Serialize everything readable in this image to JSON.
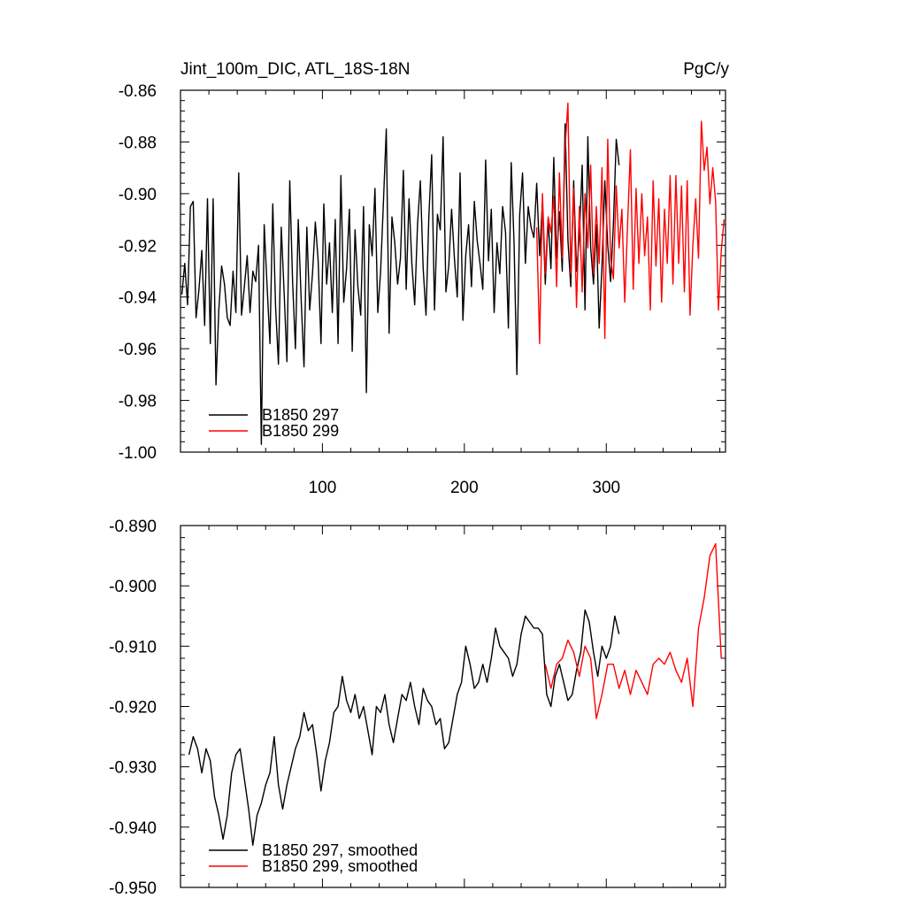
{
  "chart_data": [
    {
      "type": "line",
      "title": "Jint_100m_DIC, ATL_18S-18N",
      "units": "PgC/y",
      "xlim": [
        0,
        384
      ],
      "ylim": [
        -1.0,
        -0.86
      ],
      "x_ticks": [
        100,
        200,
        300
      ],
      "x_tick_labels": [
        "100",
        "200",
        "300"
      ],
      "y_ticks": [
        -0.86,
        -0.88,
        -0.9,
        -0.92,
        -0.94,
        -0.96,
        -0.98,
        -1.0
      ],
      "y_tick_labels": [
        "-0.86",
        "-0.88",
        "-0.90",
        "-0.92",
        "-0.94",
        "-0.96",
        "-0.98",
        "-1.00"
      ],
      "legend_position": "bottom-left",
      "series": [
        {
          "name": "B1850 297",
          "color": "#000000",
          "x": [
            1,
            3,
            5,
            7,
            9,
            11,
            13,
            15,
            17,
            19,
            21,
            23,
            25,
            27,
            29,
            31,
            33,
            35,
            37,
            39,
            41,
            43,
            45,
            47,
            49,
            51,
            53,
            55,
            57,
            59,
            61,
            63,
            65,
            67,
            69,
            71,
            73,
            75,
            77,
            79,
            81,
            83,
            85,
            87,
            89,
            91,
            93,
            95,
            97,
            99,
            101,
            103,
            105,
            107,
            109,
            111,
            113,
            115,
            117,
            119,
            121,
            123,
            125,
            127,
            129,
            131,
            133,
            135,
            137,
            139,
            141,
            143,
            145,
            147,
            149,
            151,
            153,
            155,
            157,
            159,
            161,
            163,
            165,
            167,
            169,
            171,
            173,
            175,
            177,
            179,
            181,
            183,
            185,
            187,
            189,
            191,
            193,
            195,
            197,
            199,
            201,
            203,
            205,
            207,
            209,
            211,
            213,
            215,
            217,
            219,
            221,
            223,
            225,
            227,
            229,
            231,
            233,
            235,
            237,
            239,
            241,
            243,
            245,
            247,
            249,
            251,
            253,
            255,
            257,
            259,
            261,
            263,
            265,
            267,
            269,
            271,
            273,
            275,
            277,
            279,
            281,
            283,
            285,
            287,
            289,
            291,
            293,
            295,
            297,
            299,
            301,
            303,
            305,
            307,
            309
          ],
          "values": [
            -0.939,
            -0.927,
            -0.943,
            -0.905,
            -0.903,
            -0.948,
            -0.937,
            -0.922,
            -0.951,
            -0.902,
            -0.958,
            -0.902,
            -0.974,
            -0.945,
            -0.928,
            -0.935,
            -0.948,
            -0.951,
            -0.93,
            -0.946,
            -0.892,
            -0.947,
            -0.936,
            -0.924,
            -0.946,
            -0.93,
            -0.934,
            -0.92,
            -0.997,
            -0.912,
            -0.936,
            -0.958,
            -0.904,
            -0.944,
            -0.966,
            -0.913,
            -0.938,
            -0.965,
            -0.895,
            -0.934,
            -0.96,
            -0.91,
            -0.941,
            -0.967,
            -0.913,
            -0.945,
            -0.931,
            -0.911,
            -0.926,
            -0.958,
            -0.904,
            -0.935,
            -0.919,
            -0.946,
            -0.91,
            -0.958,
            -0.893,
            -0.942,
            -0.929,
            -0.906,
            -0.961,
            -0.914,
            -0.936,
            -0.947,
            -0.905,
            -0.977,
            -0.912,
            -0.924,
            -0.898,
            -0.946,
            -0.93,
            -0.903,
            -0.875,
            -0.954,
            -0.909,
            -0.919,
            -0.935,
            -0.925,
            -0.891,
            -0.937,
            -0.902,
            -0.927,
            -0.943,
            -0.912,
            -0.895,
            -0.929,
            -0.947,
            -0.909,
            -0.885,
            -0.945,
            -0.908,
            -0.914,
            -0.878,
            -0.938,
            -0.928,
            -0.906,
            -0.925,
            -0.94,
            -0.892,
            -0.949,
            -0.924,
            -0.912,
            -0.936,
            -0.903,
            -0.918,
            -0.927,
            -0.937,
            -0.887,
            -0.926,
            -0.906,
            -0.946,
            -0.919,
            -0.931,
            -0.905,
            -0.915,
            -0.952,
            -0.888,
            -0.919,
            -0.97,
            -0.908,
            -0.892,
            -0.927,
            -0.905,
            -0.913,
            -0.917,
            -0.896,
            -0.924,
            -0.903,
            -0.935,
            -0.91,
            -0.929,
            -0.886,
            -0.925,
            -0.907,
            -0.93,
            -0.873,
            -0.918,
            -0.936,
            -0.895,
            -0.93,
            -0.917,
            -0.889,
            -0.945,
            -0.878,
            -0.921,
            -0.935,
            -0.912,
            -0.952,
            -0.928,
            -0.895,
            -0.92,
            -0.934,
            -0.912,
            -0.879,
            -0.889
          ]
        },
        {
          "name": "B1850 299",
          "color": "#ff0000",
          "x": [
            251,
            253,
            255,
            257,
            259,
            261,
            263,
            265,
            267,
            269,
            271,
            273,
            275,
            277,
            279,
            281,
            283,
            285,
            287,
            289,
            291,
            293,
            295,
            297,
            299,
            301,
            303,
            305,
            307,
            309,
            311,
            313,
            315,
            317,
            319,
            321,
            323,
            325,
            327,
            329,
            331,
            333,
            335,
            337,
            339,
            341,
            343,
            345,
            347,
            349,
            351,
            353,
            355,
            357,
            359,
            361,
            363,
            365,
            367,
            369,
            371,
            373,
            375,
            377,
            379,
            381,
            383
          ],
          "values": [
            -0.913,
            -0.958,
            -0.9,
            -0.931,
            -0.909,
            -0.915,
            -0.901,
            -0.936,
            -0.892,
            -0.925,
            -0.882,
            -0.865,
            -0.931,
            -0.898,
            -0.944,
            -0.905,
            -0.938,
            -0.9,
            -0.921,
            -0.889,
            -0.931,
            -0.905,
            -0.927,
            -0.89,
            -0.956,
            -0.879,
            -0.925,
            -0.933,
            -0.897,
            -0.921,
            -0.906,
            -0.942,
            -0.912,
            -0.883,
            -0.937,
            -0.898,
            -0.927,
            -0.9,
            -0.924,
            -0.909,
            -0.945,
            -0.895,
            -0.928,
            -0.902,
            -0.942,
            -0.906,
            -0.927,
            -0.893,
            -0.935,
            -0.893,
            -0.927,
            -0.897,
            -0.938,
            -0.895,
            -0.947,
            -0.92,
            -0.902,
            -0.925,
            -0.872,
            -0.891,
            -0.882,
            -0.904,
            -0.89,
            -0.903,
            -0.945,
            -0.922,
            -0.91
          ]
        }
      ]
    },
    {
      "type": "line",
      "xlim": [
        0,
        384
      ],
      "ylim": [
        -0.95,
        -0.89
      ],
      "x_ticks": [
        100,
        200,
        300
      ],
      "y_ticks": [
        -0.89,
        -0.9,
        -0.91,
        -0.92,
        -0.93,
        -0.94,
        -0.95
      ],
      "y_tick_labels": [
        "-0.890",
        "-0.900",
        "-0.910",
        "-0.920",
        "-0.930",
        "-0.940",
        "-0.950"
      ],
      "legend_position": "bottom-left",
      "series": [
        {
          "name": "B1850 297, smoothed",
          "color": "#000000",
          "x": [
            6,
            9,
            12,
            15,
            18,
            21,
            24,
            27,
            30,
            33,
            36,
            39,
            42,
            45,
            48,
            51,
            54,
            57,
            60,
            63,
            66,
            69,
            72,
            75,
            78,
            81,
            84,
            87,
            90,
            93,
            96,
            99,
            102,
            105,
            108,
            111,
            114,
            117,
            120,
            123,
            126,
            129,
            132,
            135,
            138,
            141,
            144,
            147,
            150,
            153,
            156,
            159,
            162,
            165,
            168,
            171,
            174,
            177,
            180,
            183,
            186,
            189,
            192,
            195,
            198,
            201,
            204,
            207,
            210,
            213,
            216,
            219,
            222,
            225,
            228,
            231,
            234,
            237,
            240,
            243,
            246,
            249,
            252,
            255,
            258,
            261,
            264,
            267,
            270,
            273,
            276,
            279,
            282,
            285,
            288,
            291,
            294,
            297,
            300,
            303,
            306,
            309
          ],
          "values": [
            -0.928,
            -0.925,
            -0.927,
            -0.931,
            -0.927,
            -0.929,
            -0.935,
            -0.938,
            -0.942,
            -0.938,
            -0.931,
            -0.928,
            -0.927,
            -0.932,
            -0.937,
            -0.943,
            -0.938,
            -0.936,
            -0.933,
            -0.931,
            -0.925,
            -0.933,
            -0.937,
            -0.933,
            -0.93,
            -0.927,
            -0.925,
            -0.921,
            -0.924,
            -0.923,
            -0.928,
            -0.934,
            -0.929,
            -0.926,
            -0.921,
            -0.92,
            -0.915,
            -0.919,
            -0.921,
            -0.918,
            -0.922,
            -0.92,
            -0.924,
            -0.928,
            -0.92,
            -0.921,
            -0.918,
            -0.923,
            -0.926,
            -0.922,
            -0.918,
            -0.919,
            -0.916,
            -0.92,
            -0.923,
            -0.917,
            -0.919,
            -0.92,
            -0.923,
            -0.922,
            -0.927,
            -0.926,
            -0.922,
            -0.918,
            -0.916,
            -0.91,
            -0.913,
            -0.917,
            -0.916,
            -0.913,
            -0.916,
            -0.912,
            -0.907,
            -0.91,
            -0.911,
            -0.912,
            -0.915,
            -0.913,
            -0.908,
            -0.905,
            -0.906,
            -0.907,
            -0.907,
            -0.908,
            -0.918,
            -0.92,
            -0.915,
            -0.913,
            -0.916,
            -0.919,
            -0.918,
            -0.914,
            -0.911,
            -0.904,
            -0.906,
            -0.911,
            -0.915,
            -0.91,
            -0.912,
            -0.91,
            -0.905,
            -0.908
          ]
        },
        {
          "name": "B1850 299, smoothed",
          "color": "#ff0000",
          "x": [
            257,
            261,
            265,
            269,
            273,
            277,
            281,
            285,
            289,
            293,
            297,
            301,
            305,
            309,
            313,
            317,
            321,
            325,
            329,
            333,
            337,
            341,
            345,
            349,
            353,
            357,
            361,
            365,
            369,
            373,
            377,
            381
          ],
          "values": [
            -0.913,
            -0.917,
            -0.913,
            -0.912,
            -0.909,
            -0.911,
            -0.915,
            -0.91,
            -0.912,
            -0.922,
            -0.918,
            -0.913,
            -0.913,
            -0.917,
            -0.914,
            -0.918,
            -0.914,
            -0.916,
            -0.918,
            -0.913,
            -0.912,
            -0.913,
            -0.911,
            -0.914,
            -0.916,
            -0.912,
            -0.92,
            -0.907,
            -0.902,
            -0.895,
            -0.893,
            -0.912
          ]
        }
      ]
    }
  ]
}
